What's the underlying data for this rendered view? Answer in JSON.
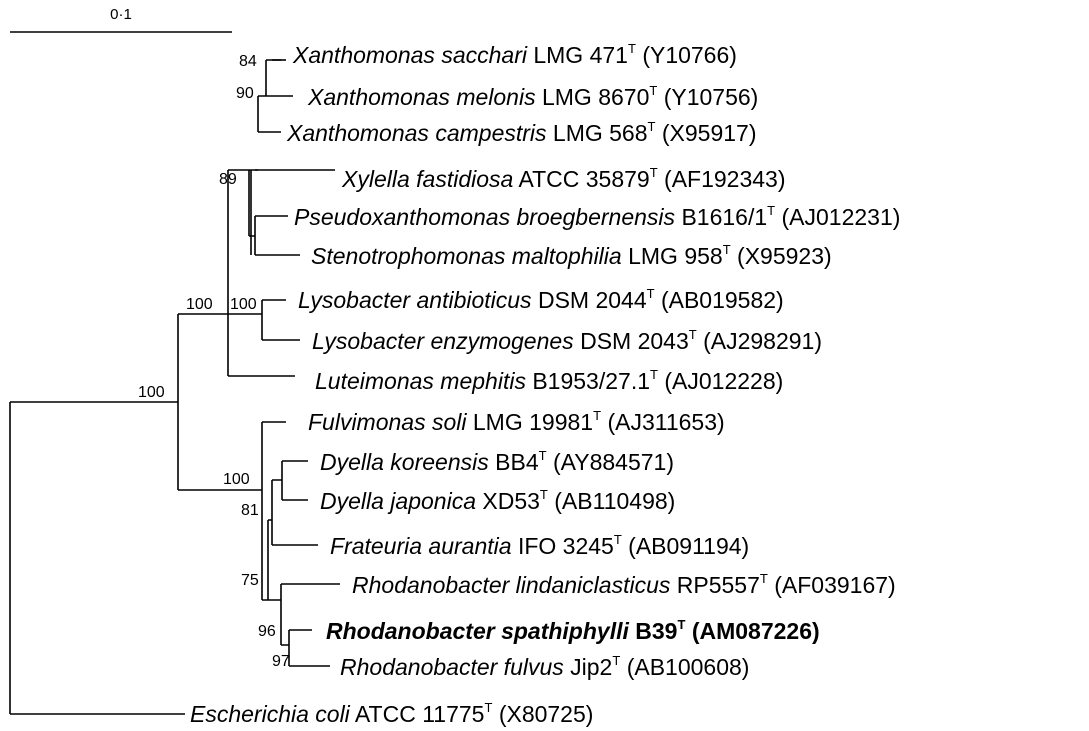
{
  "scale_bar": {
    "label": "0·1"
  },
  "leaves": [
    {
      "id": "xsac",
      "species": "Xanthomonas sacchari",
      "strain": "LMG 471",
      "type_mark": "T",
      "accession": "(Y10766)",
      "bold": false
    },
    {
      "id": "xmel",
      "species": "Xanthomonas melonis",
      "strain": "LMG 8670",
      "type_mark": "T",
      "accession": "(Y10756)",
      "bold": false
    },
    {
      "id": "xcam",
      "species": "Xanthomonas campestris",
      "strain": "LMG 568",
      "type_mark": "T",
      "accession": "(X95917)",
      "bold": false
    },
    {
      "id": "xyl",
      "species": "Xylella fastidiosa",
      "strain": "ATCC 35879",
      "type_mark": "T",
      "accession": "(AF192343)",
      "bold": false
    },
    {
      "id": "pseu",
      "species": "Pseudoxanthomonas broegbernensis",
      "strain": "B1616/1",
      "type_mark": "T",
      "accession": "(AJ012231)",
      "bold": false
    },
    {
      "id": "sten",
      "species": "Stenotrophomonas maltophilia",
      "strain": "LMG 958",
      "type_mark": "T",
      "accession": "(X95923)",
      "bold": false
    },
    {
      "id": "lant",
      "species": "Lysobacter antibioticus",
      "strain": "DSM 2044",
      "type_mark": "T",
      "accession": "(AB019582)",
      "bold": false
    },
    {
      "id": "lenz",
      "species": "Lysobacter enzymogenes",
      "strain": "DSM 2043",
      "type_mark": "T",
      "accession": "(AJ298291)",
      "bold": false
    },
    {
      "id": "lute",
      "species": "Luteimonas mephitis",
      "strain": "B1953/27.1",
      "type_mark": "T",
      "accession": "(AJ012228)",
      "bold": false
    },
    {
      "id": "fulv",
      "species": "Fulvimonas soli",
      "strain": "LMG 19981",
      "type_mark": "T",
      "accession": "(AJ311653)",
      "bold": false
    },
    {
      "id": "dkor",
      "species": "Dyella koreensis",
      "strain": "BB4",
      "type_mark": "T",
      "accession": "(AY884571)",
      "bold": false
    },
    {
      "id": "djap",
      "species": "Dyella japonica",
      "strain": "XD53",
      "type_mark": "T",
      "accession": "(AB110498)",
      "bold": false
    },
    {
      "id": "frat",
      "species": "Frateuria aurantia",
      "strain": "IFO 3245",
      "type_mark": "T",
      "accession": "(AB091194)",
      "bold": false
    },
    {
      "id": "rlin",
      "species": "Rhodanobacter lindaniclasticus",
      "strain": "RP5557",
      "type_mark": "T",
      "accession": "(AF039167)",
      "bold": false
    },
    {
      "id": "rspa",
      "species": "Rhodanobacter spathiphylli",
      "strain": "B39",
      "type_mark": "T",
      "accession": "(AM087226)",
      "bold": true
    },
    {
      "id": "rful",
      "species": "Rhodanobacter fulvus",
      "strain": "Jip2",
      "type_mark": "T",
      "accession": "(AB100608)",
      "bold": false
    },
    {
      "id": "ecol",
      "species": "Escherichia coli",
      "strain": "ATCC 11775",
      "type_mark": "T",
      "accession": "(X80725)",
      "bold": false
    }
  ],
  "bootstrap": [
    {
      "id": "b_xsac",
      "value": "84"
    },
    {
      "id": "b_xmel",
      "value": "90"
    },
    {
      "id": "b_xan",
      "value": "89"
    },
    {
      "id": "b_lyso_outer",
      "value": "100"
    },
    {
      "id": "b_lyso",
      "value": "100"
    },
    {
      "id": "b_root",
      "value": "100"
    },
    {
      "id": "b_rhod_outer",
      "value": "100"
    },
    {
      "id": "b_dyella",
      "value": "81"
    },
    {
      "id": "b_frat",
      "value": "75"
    },
    {
      "id": "b_rhod",
      "value": "96"
    },
    {
      "id": "b_rspa",
      "value": "97"
    }
  ]
}
